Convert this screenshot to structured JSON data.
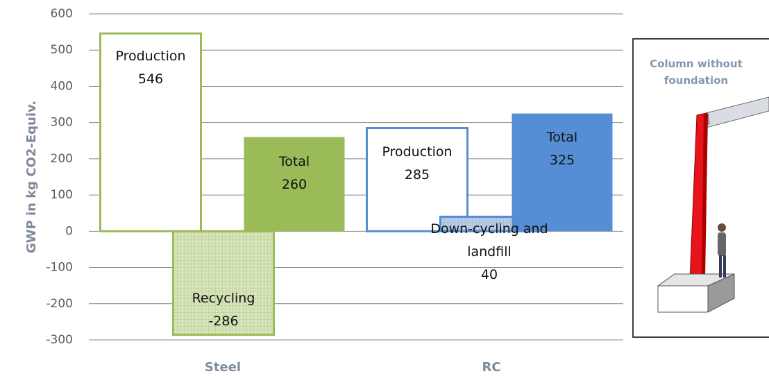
{
  "chart_data": {
    "type": "bar",
    "y_label": "GWP in kg CO2-Equiv.",
    "ylim": [
      -300,
      600
    ],
    "yticks": [
      -300,
      -200,
      -100,
      0,
      100,
      200,
      300,
      400,
      500,
      600
    ],
    "grid": true,
    "groups": [
      {
        "category": "Steel",
        "bars": [
          {
            "name": "Production",
            "value": 546,
            "color": "#9bbb59",
            "style": "outline"
          },
          {
            "name": "Recycling",
            "value": -286,
            "color": "#9bbb59",
            "style": "hatched"
          },
          {
            "name": "Total",
            "value": 260,
            "color": "#9bbb59",
            "style": "filled"
          }
        ]
      },
      {
        "category": "RC",
        "bars": [
          {
            "name": "Production",
            "value": 285,
            "color": "#558ed5",
            "style": "outline"
          },
          {
            "name": "Down-cycling and landfill",
            "value": 40,
            "color": "#558ed5",
            "style": "hatched"
          },
          {
            "name": "Total",
            "value": 325,
            "color": "#558ed5",
            "style": "filled"
          }
        ]
      }
    ]
  },
  "inset": {
    "title": "Column without foundation"
  }
}
